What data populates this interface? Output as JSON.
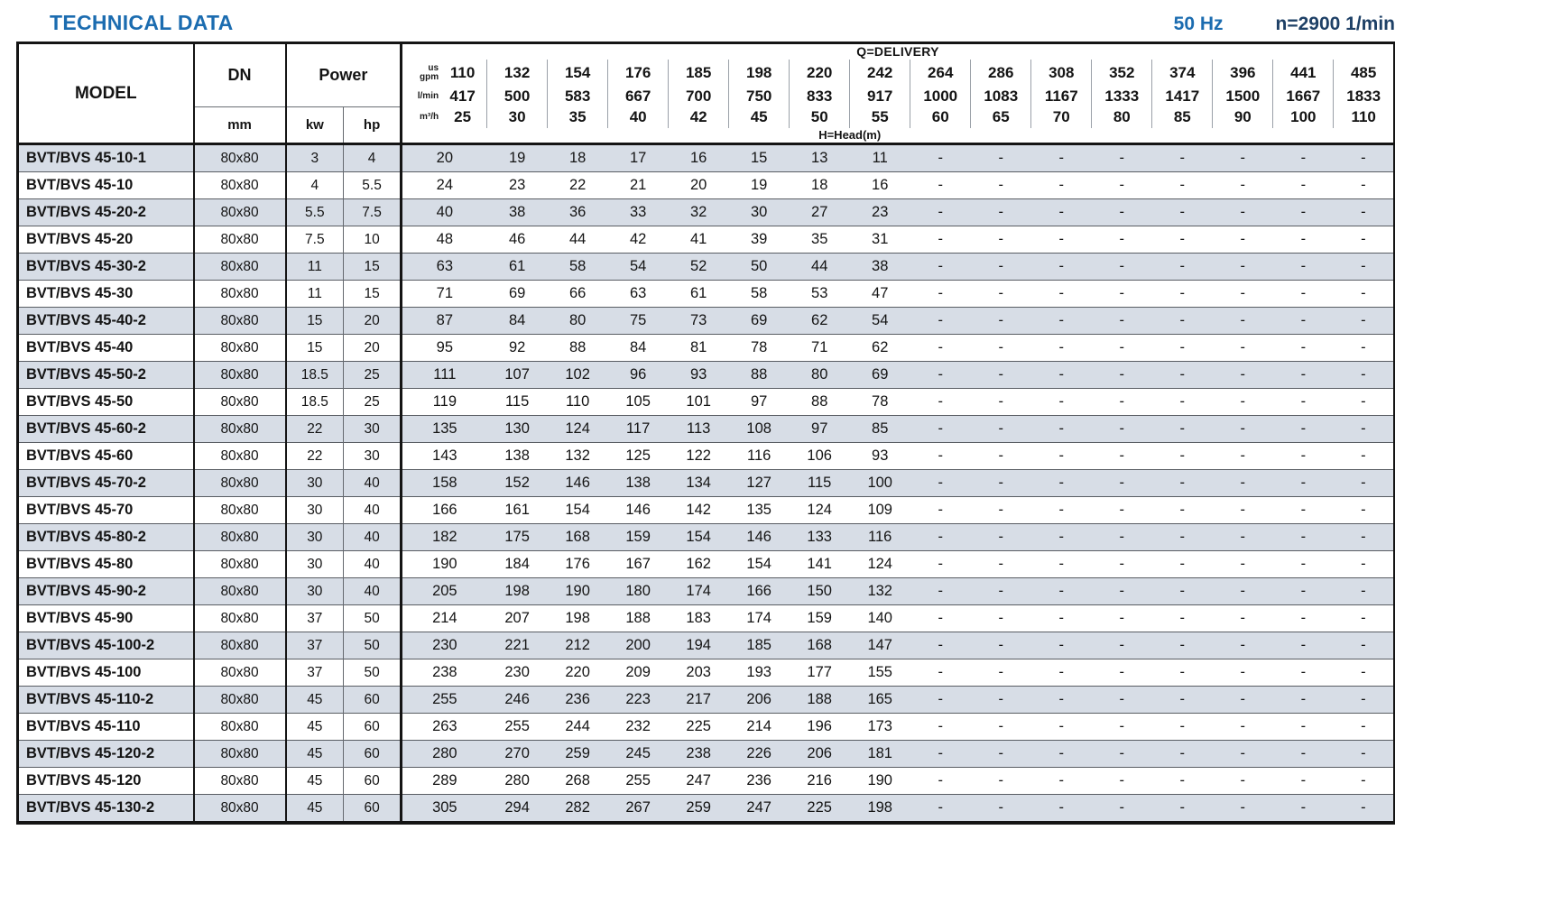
{
  "page": {
    "title": "TECHNICAL DATA",
    "frequency": "50 Hz",
    "speed": "n=2900 1/min"
  },
  "table": {
    "model_header": "MODEL",
    "dn_header": "DN",
    "dn_unit": "mm",
    "power_header": "Power",
    "kw_unit": "kw",
    "hp_unit": "hp",
    "delivery_header": "Q=DELIVERY",
    "head_label": "H=Head(m)",
    "units": [
      "us\ngpm",
      "l/min",
      "m³/h"
    ],
    "gpm": [
      "110",
      "132",
      "154",
      "176",
      "185",
      "198",
      "220",
      "242",
      "264",
      "286",
      "308",
      "352",
      "374",
      "396",
      "441",
      "485"
    ],
    "lmin": [
      "417",
      "500",
      "583",
      "667",
      "700",
      "750",
      "833",
      "917",
      "1000",
      "1083",
      "1167",
      "1333",
      "1417",
      "1500",
      "1667",
      "1833"
    ],
    "m3h": [
      "25",
      "30",
      "35",
      "40",
      "42",
      "45",
      "50",
      "55",
      "60",
      "65",
      "70",
      "80",
      "85",
      "90",
      "100",
      "110"
    ],
    "rows": [
      {
        "model": "BVT/BVS 45-10-1",
        "dn": "80x80",
        "kw": "3",
        "hp": "4",
        "head": [
          "20",
          "19",
          "18",
          "17",
          "16",
          "15",
          "13",
          "11",
          "-",
          "-",
          "-",
          "-",
          "-",
          "-",
          "-",
          "-"
        ]
      },
      {
        "model": "BVT/BVS 45-10",
        "dn": "80x80",
        "kw": "4",
        "hp": "5.5",
        "head": [
          "24",
          "23",
          "22",
          "21",
          "20",
          "19",
          "18",
          "16",
          "-",
          "-",
          "-",
          "-",
          "-",
          "-",
          "-",
          "-"
        ]
      },
      {
        "model": "BVT/BVS 45-20-2",
        "dn": "80x80",
        "kw": "5.5",
        "hp": "7.5",
        "head": [
          "40",
          "38",
          "36",
          "33",
          "32",
          "30",
          "27",
          "23",
          "-",
          "-",
          "-",
          "-",
          "-",
          "-",
          "-",
          "-"
        ]
      },
      {
        "model": "BVT/BVS 45-20",
        "dn": "80x80",
        "kw": "7.5",
        "hp": "10",
        "head": [
          "48",
          "46",
          "44",
          "42",
          "41",
          "39",
          "35",
          "31",
          "-",
          "-",
          "-",
          "-",
          "-",
          "-",
          "-",
          "-"
        ]
      },
      {
        "model": "BVT/BVS 45-30-2",
        "dn": "80x80",
        "kw": "11",
        "hp": "15",
        "head": [
          "63",
          "61",
          "58",
          "54",
          "52",
          "50",
          "44",
          "38",
          "-",
          "-",
          "-",
          "-",
          "-",
          "-",
          "-",
          "-"
        ]
      },
      {
        "model": "BVT/BVS 45-30",
        "dn": "80x80",
        "kw": "11",
        "hp": "15",
        "head": [
          "71",
          "69",
          "66",
          "63",
          "61",
          "58",
          "53",
          "47",
          "-",
          "-",
          "-",
          "-",
          "-",
          "-",
          "-",
          "-"
        ]
      },
      {
        "model": "BVT/BVS 45-40-2",
        "dn": "80x80",
        "kw": "15",
        "hp": "20",
        "head": [
          "87",
          "84",
          "80",
          "75",
          "73",
          "69",
          "62",
          "54",
          "-",
          "-",
          "-",
          "-",
          "-",
          "-",
          "-",
          "-"
        ]
      },
      {
        "model": "BVT/BVS 45-40",
        "dn": "80x80",
        "kw": "15",
        "hp": "20",
        "head": [
          "95",
          "92",
          "88",
          "84",
          "81",
          "78",
          "71",
          "62",
          "-",
          "-",
          "-",
          "-",
          "-",
          "-",
          "-",
          "-"
        ]
      },
      {
        "model": "BVT/BVS 45-50-2",
        "dn": "80x80",
        "kw": "18.5",
        "hp": "25",
        "head": [
          "111",
          "107",
          "102",
          "96",
          "93",
          "88",
          "80",
          "69",
          "-",
          "-",
          "-",
          "-",
          "-",
          "-",
          "-",
          "-"
        ]
      },
      {
        "model": "BVT/BVS 45-50",
        "dn": "80x80",
        "kw": "18.5",
        "hp": "25",
        "head": [
          "119",
          "115",
          "110",
          "105",
          "101",
          "97",
          "88",
          "78",
          "-",
          "-",
          "-",
          "-",
          "-",
          "-",
          "-",
          "-"
        ]
      },
      {
        "model": "BVT/BVS 45-60-2",
        "dn": "80x80",
        "kw": "22",
        "hp": "30",
        "head": [
          "135",
          "130",
          "124",
          "117",
          "113",
          "108",
          "97",
          "85",
          "-",
          "-",
          "-",
          "-",
          "-",
          "-",
          "-",
          "-"
        ]
      },
      {
        "model": "BVT/BVS 45-60",
        "dn": "80x80",
        "kw": "22",
        "hp": "30",
        "head": [
          "143",
          "138",
          "132",
          "125",
          "122",
          "116",
          "106",
          "93",
          "-",
          "-",
          "-",
          "-",
          "-",
          "-",
          "-",
          "-"
        ]
      },
      {
        "model": "BVT/BVS 45-70-2",
        "dn": "80x80",
        "kw": "30",
        "hp": "40",
        "head": [
          "158",
          "152",
          "146",
          "138",
          "134",
          "127",
          "115",
          "100",
          "-",
          "-",
          "-",
          "-",
          "-",
          "-",
          "-",
          "-"
        ]
      },
      {
        "model": "BVT/BVS 45-70",
        "dn": "80x80",
        "kw": "30",
        "hp": "40",
        "head": [
          "166",
          "161",
          "154",
          "146",
          "142",
          "135",
          "124",
          "109",
          "-",
          "-",
          "-",
          "-",
          "-",
          "-",
          "-",
          "-"
        ]
      },
      {
        "model": "BVT/BVS 45-80-2",
        "dn": "80x80",
        "kw": "30",
        "hp": "40",
        "head": [
          "182",
          "175",
          "168",
          "159",
          "154",
          "146",
          "133",
          "116",
          "-",
          "-",
          "-",
          "-",
          "-",
          "-",
          "-",
          "-"
        ]
      },
      {
        "model": "BVT/BVS 45-80",
        "dn": "80x80",
        "kw": "30",
        "hp": "40",
        "head": [
          "190",
          "184",
          "176",
          "167",
          "162",
          "154",
          "141",
          "124",
          "-",
          "-",
          "-",
          "-",
          "-",
          "-",
          "-",
          "-"
        ]
      },
      {
        "model": "BVT/BVS 45-90-2",
        "dn": "80x80",
        "kw": "30",
        "hp": "40",
        "head": [
          "205",
          "198",
          "190",
          "180",
          "174",
          "166",
          "150",
          "132",
          "-",
          "-",
          "-",
          "-",
          "-",
          "-",
          "-",
          "-"
        ]
      },
      {
        "model": "BVT/BVS 45-90",
        "dn": "80x80",
        "kw": "37",
        "hp": "50",
        "head": [
          "214",
          "207",
          "198",
          "188",
          "183",
          "174",
          "159",
          "140",
          "-",
          "-",
          "-",
          "-",
          "-",
          "-",
          "-",
          "-"
        ]
      },
      {
        "model": "BVT/BVS 45-100-2",
        "dn": "80x80",
        "kw": "37",
        "hp": "50",
        "head": [
          "230",
          "221",
          "212",
          "200",
          "194",
          "185",
          "168",
          "147",
          "-",
          "-",
          "-",
          "-",
          "-",
          "-",
          "-",
          "-"
        ]
      },
      {
        "model": "BVT/BVS 45-100",
        "dn": "80x80",
        "kw": "37",
        "hp": "50",
        "head": [
          "238",
          "230",
          "220",
          "209",
          "203",
          "193",
          "177",
          "155",
          "-",
          "-",
          "-",
          "-",
          "-",
          "-",
          "-",
          "-"
        ]
      },
      {
        "model": "BVT/BVS 45-110-2",
        "dn": "80x80",
        "kw": "45",
        "hp": "60",
        "head": [
          "255",
          "246",
          "236",
          "223",
          "217",
          "206",
          "188",
          "165",
          "-",
          "-",
          "-",
          "-",
          "-",
          "-",
          "-",
          "-"
        ]
      },
      {
        "model": "BVT/BVS 45-110",
        "dn": "80x80",
        "kw": "45",
        "hp": "60",
        "head": [
          "263",
          "255",
          "244",
          "232",
          "225",
          "214",
          "196",
          "173",
          "-",
          "-",
          "-",
          "-",
          "-",
          "-",
          "-",
          "-"
        ]
      },
      {
        "model": "BVT/BVS 45-120-2",
        "dn": "80x80",
        "kw": "45",
        "hp": "60",
        "head": [
          "280",
          "270",
          "259",
          "245",
          "238",
          "226",
          "206",
          "181",
          "-",
          "-",
          "-",
          "-",
          "-",
          "-",
          "-",
          "-"
        ]
      },
      {
        "model": "BVT/BVS 45-120",
        "dn": "80x80",
        "kw": "45",
        "hp": "60",
        "head": [
          "289",
          "280",
          "268",
          "255",
          "247",
          "236",
          "216",
          "190",
          "-",
          "-",
          "-",
          "-",
          "-",
          "-",
          "-",
          "-"
        ]
      },
      {
        "model": "BVT/BVS 45-130-2",
        "dn": "80x80",
        "kw": "45",
        "hp": "60",
        "head": [
          "305",
          "294",
          "282",
          "267",
          "259",
          "247",
          "225",
          "198",
          "-",
          "-",
          "-",
          "-",
          "-",
          "-",
          "-",
          "-"
        ]
      }
    ]
  }
}
